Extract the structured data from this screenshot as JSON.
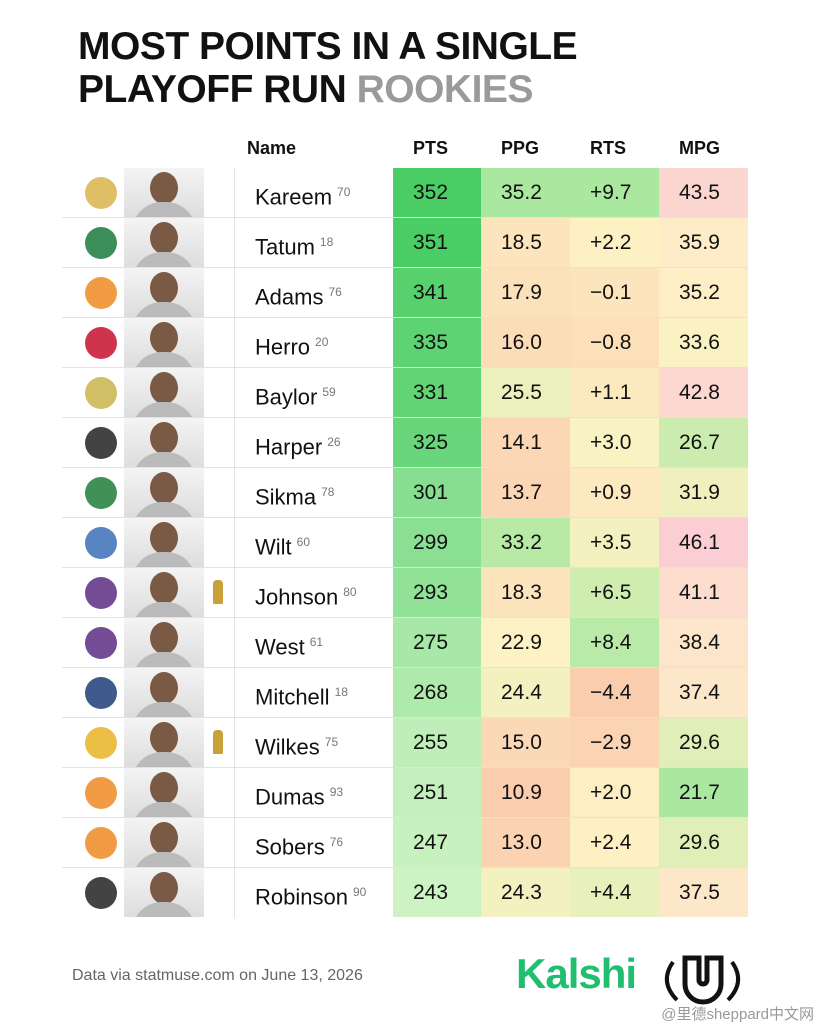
{
  "header": {
    "title_line1": "MOST POINTS IN A SINGLE",
    "title_line2": "PLAYOFF RUN",
    "title_accent": "ROOKIES"
  },
  "table": {
    "columns": [
      "Name",
      "PTS",
      "PPG",
      "RTS",
      "MPG"
    ],
    "rows": [
      {
        "name": "Kareem",
        "year": "70",
        "pts": "352",
        "ppg": "35.2",
        "rts": "+9.7",
        "mpg": "43.5"
      },
      {
        "name": "Tatum",
        "year": "18",
        "pts": "351",
        "ppg": "18.5",
        "rts": "+2.2",
        "mpg": "35.9"
      },
      {
        "name": "Adams",
        "year": "76",
        "pts": "341",
        "ppg": "17.9",
        "rts": "−0.1",
        "mpg": "35.2"
      },
      {
        "name": "Herro",
        "year": "20",
        "pts": "335",
        "ppg": "16.0",
        "rts": "−0.8",
        "mpg": "33.6"
      },
      {
        "name": "Baylor",
        "year": "59",
        "pts": "331",
        "ppg": "25.5",
        "rts": "+1.1",
        "mpg": "42.8"
      },
      {
        "name": "Harper",
        "year": "26",
        "pts": "325",
        "ppg": "14.1",
        "rts": "+3.0",
        "mpg": "26.7"
      },
      {
        "name": "Sikma",
        "year": "78",
        "pts": "301",
        "ppg": "13.7",
        "rts": "+0.9",
        "mpg": "31.9"
      },
      {
        "name": "Wilt",
        "year": "60",
        "pts": "299",
        "ppg": "33.2",
        "rts": "+3.5",
        "mpg": "46.1"
      },
      {
        "name": "Johnson",
        "year": "80",
        "pts": "293",
        "ppg": "18.3",
        "rts": "+6.5",
        "mpg": "41.1",
        "champion": true
      },
      {
        "name": "West",
        "year": "61",
        "pts": "275",
        "ppg": "22.9",
        "rts": "+8.4",
        "mpg": "38.4"
      },
      {
        "name": "Mitchell",
        "year": "18",
        "pts": "268",
        "ppg": "24.4",
        "rts": "−4.4",
        "mpg": "37.4"
      },
      {
        "name": "Wilkes",
        "year": "75",
        "pts": "255",
        "ppg": "15.0",
        "rts": "−2.9",
        "mpg": "29.6",
        "champion": true
      },
      {
        "name": "Dumas",
        "year": "93",
        "pts": "251",
        "ppg": "10.9",
        "rts": "+2.0",
        "mpg": "21.7"
      },
      {
        "name": "Sobers",
        "year": "76",
        "pts": "247",
        "ppg": "13.0",
        "rts": "+2.4",
        "mpg": "29.6"
      },
      {
        "name": "Robinson",
        "year": "90",
        "pts": "243",
        "ppg": "24.3",
        "rts": "+4.4",
        "mpg": "37.5"
      }
    ]
  },
  "footer": {
    "source": "Data via statmuse.com on June 13, 2026",
    "brand": "Kalshi",
    "watermark": "@里德sheppard中文网"
  }
}
